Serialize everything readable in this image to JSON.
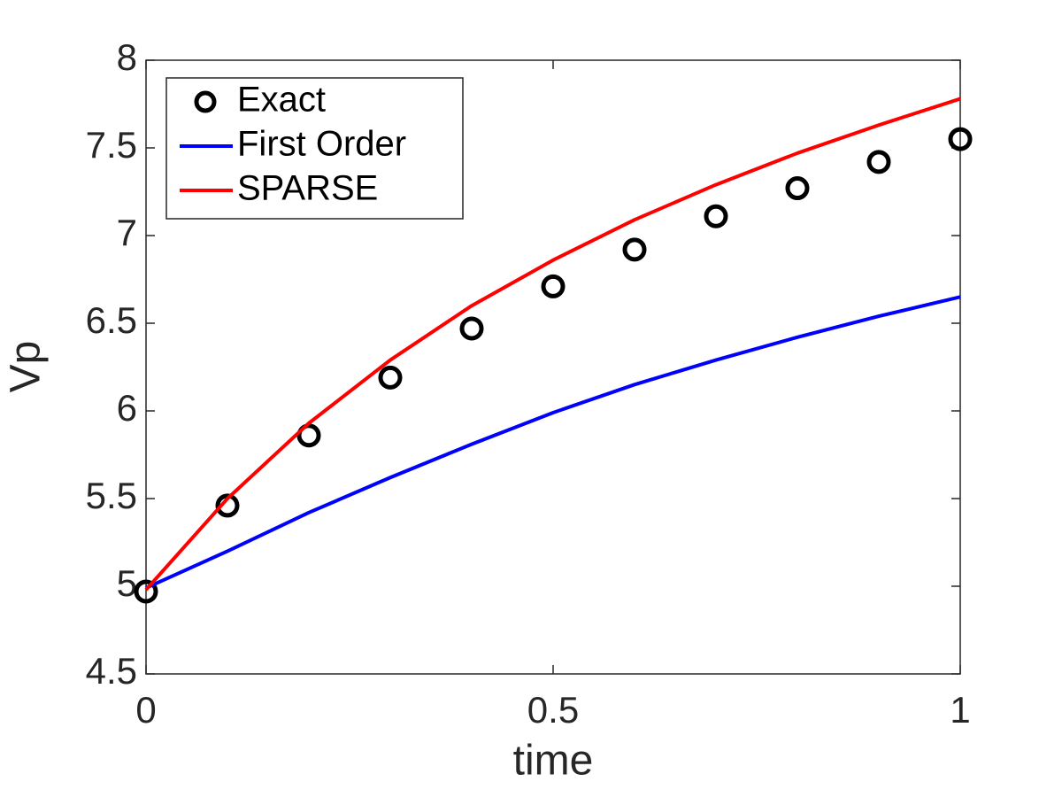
{
  "chart_data": {
    "type": "line",
    "xlabel": "time",
    "ylabel": "Vp",
    "x": [
      0,
      0.1,
      0.2,
      0.3,
      0.4,
      0.5,
      0.6,
      0.7,
      0.8,
      0.9,
      1
    ],
    "series": [
      {
        "name": "Exact",
        "color": "#000000",
        "mode": "markers",
        "values": [
          4.97,
          5.46,
          5.86,
          6.19,
          6.47,
          6.71,
          6.92,
          7.11,
          7.27,
          7.42,
          7.55
        ]
      },
      {
        "name": "First Order",
        "color": "#0000ff",
        "mode": "lines",
        "values": [
          4.99,
          5.2,
          5.42,
          5.62,
          5.81,
          5.99,
          6.15,
          6.29,
          6.42,
          6.54,
          6.65
        ]
      },
      {
        "name": "SPARSE",
        "color": "#ff0000",
        "mode": "lines",
        "values": [
          4.98,
          5.5,
          5.93,
          6.29,
          6.6,
          6.86,
          7.09,
          7.29,
          7.47,
          7.63,
          7.78
        ]
      }
    ],
    "xlim": [
      0,
      1
    ],
    "xticks": [
      0,
      0.5,
      1
    ],
    "ylim": [
      4.5,
      8
    ],
    "yticks": [
      4.5,
      5,
      5.5,
      6,
      6.5,
      7,
      7.5,
      8
    ],
    "legend": "upper left",
    "grid": false
  }
}
